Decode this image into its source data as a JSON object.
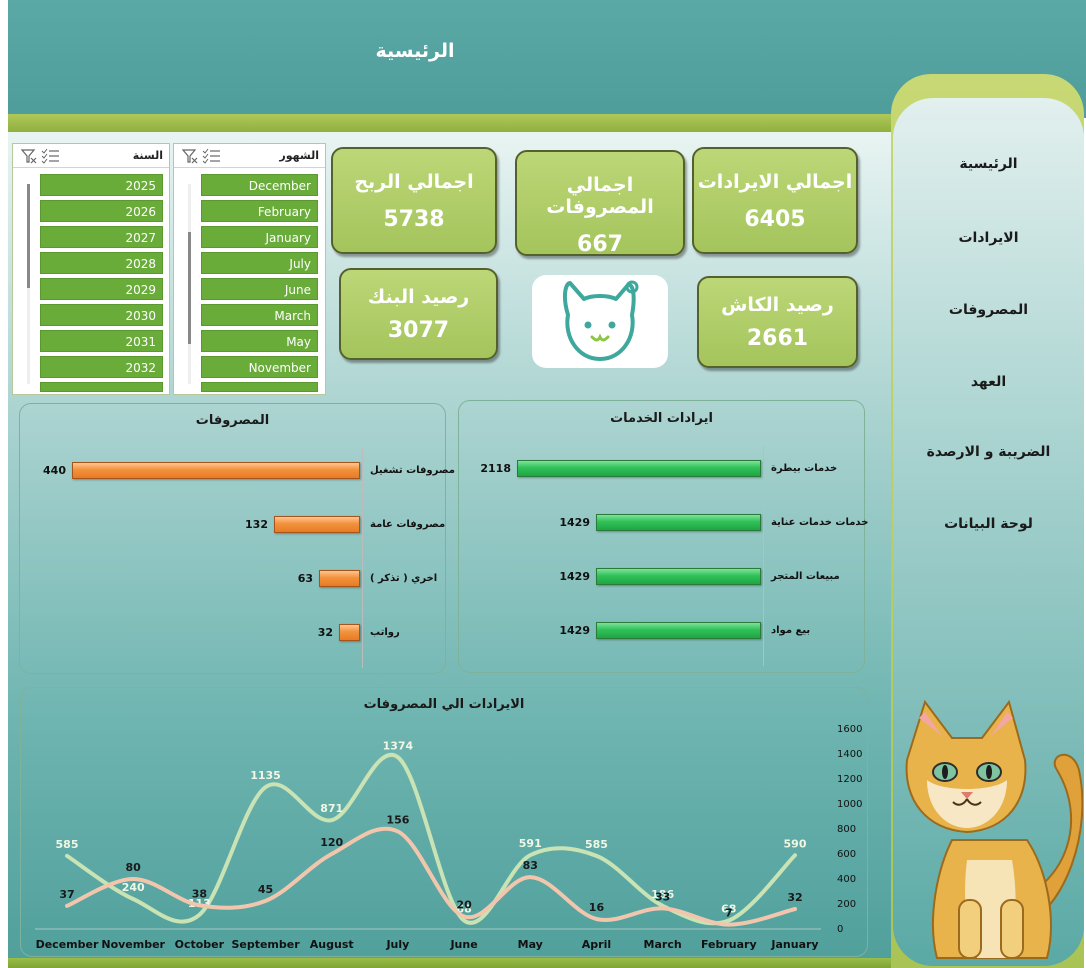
{
  "header": {
    "title": "الرئيسية"
  },
  "sidebar": {
    "items": [
      {
        "label": "الرئيسية"
      },
      {
        "label": "الايرادات"
      },
      {
        "label": "المصروفات"
      },
      {
        "label": "العهد"
      },
      {
        "label": "الضريبة و الارصدة"
      },
      {
        "label": "لوحة البيانات"
      }
    ]
  },
  "slicers": {
    "year": {
      "title": "السنة",
      "items": [
        "2025",
        "2026",
        "2027",
        "2028",
        "2029",
        "2030",
        "2031",
        "2032"
      ]
    },
    "month": {
      "title": "الشهور",
      "items": [
        "December",
        "February",
        "January",
        "July",
        "June",
        "March",
        "May",
        "November"
      ]
    }
  },
  "kpis": {
    "revenue": {
      "label": "اجمالي الايرادات",
      "value": "6405"
    },
    "expenses": {
      "label": "اجمالي المصروفات",
      "value": "667"
    },
    "profit": {
      "label": "اجمالي الربح",
      "value": "5738"
    },
    "cash": {
      "label": "رصيد الكاش",
      "value": "2661"
    },
    "bank": {
      "label": "رصيد البنك",
      "value": "3077"
    }
  },
  "colors": {
    "teal": "#4f9d9a",
    "green_accent": "#a4c45c",
    "expense_bar": "#f2923c",
    "revenue_bar": "#2fc158",
    "revenue_line": "#c9e3b4",
    "expense_line": "#f2c6ad"
  },
  "chart_data": [
    {
      "type": "bar",
      "title": "المصروفات",
      "orientation": "horizontal",
      "categories": [
        "مصروفات تشغيل",
        "مصروفات عامة",
        "اخري ( تذكر )",
        "رواتب"
      ],
      "values": [
        440,
        132,
        63,
        32
      ],
      "data_labels": [
        "440",
        "132",
        "63",
        "32"
      ]
    },
    {
      "type": "bar",
      "title": "ايرادات الخدمات",
      "orientation": "horizontal",
      "categories": [
        "خدمات بيطرة",
        "خدمات خدمات عناية",
        "مبيعات المتجر",
        "بيع مواد"
      ],
      "values": [
        2118,
        1429,
        1429,
        1429
      ],
      "data_labels": [
        "2118",
        "1429",
        "1429",
        "1429"
      ]
    },
    {
      "type": "line",
      "title": "الايرادات الي المصروفات",
      "categories": [
        "December",
        "November",
        "October",
        "September",
        "August",
        "July",
        "June",
        "May",
        "April",
        "March",
        "February",
        "January"
      ],
      "yticks": [
        "0",
        "200",
        "400",
        "600",
        "800",
        "1000",
        "1200",
        "1400",
        "1600"
      ],
      "ylim": [
        0,
        1600
      ],
      "series": [
        {
          "values": [
            585,
            240,
            113,
            1135,
            871,
            1374,
            68,
            591,
            585,
            186,
            68,
            590
          ],
          "labels": [
            "585",
            "240",
            "113",
            "1135",
            "871",
            "1374",
            "68",
            "591",
            "585",
            "186",
            "68",
            "590"
          ]
        },
        {
          "values": [
            37,
            80,
            38,
            45,
            120,
            156,
            20,
            83,
            16,
            33,
            7,
            32
          ],
          "labels": [
            "37",
            "80",
            "38",
            "45",
            "120",
            "156",
            "20",
            "83",
            "16",
            "33",
            "7",
            "32"
          ]
        }
      ]
    }
  ]
}
